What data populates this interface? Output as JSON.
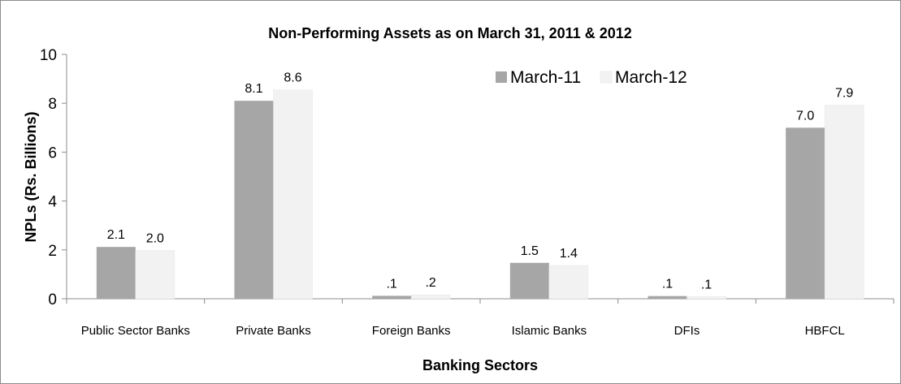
{
  "chart_data": {
    "type": "bar",
    "title": "Non-Performing Assets as on March 31, 2011 & 2012",
    "xlabel": "Banking Sectors",
    "ylabel": "NPLs (Rs. Billions)",
    "categories": [
      "Public Sector Banks",
      "Private Banks",
      "Foreign Banks",
      "Islamic Banks",
      "DFIs",
      "HBFCL"
    ],
    "series": [
      {
        "name": "March-11",
        "values": [
          2.12,
          8.1,
          0.12,
          1.47,
          0.11,
          7.0
        ],
        "labels": [
          "2.1",
          "8.1",
          ".1",
          "1.5",
          ".1",
          "7.0"
        ],
        "color": "#a6a6a6"
      },
      {
        "name": "March-12",
        "values": [
          1.98,
          8.55,
          0.16,
          1.36,
          0.09,
          7.92
        ],
        "labels": [
          "2.0",
          "8.6",
          ".2",
          "1.4",
          ".1",
          "7.9"
        ],
        "color": "#f2f2f2"
      }
    ],
    "ylim": [
      0,
      10
    ],
    "yticks": [
      0,
      2,
      4,
      6,
      8,
      10
    ],
    "grid": false,
    "legend_position": "top-right"
  }
}
